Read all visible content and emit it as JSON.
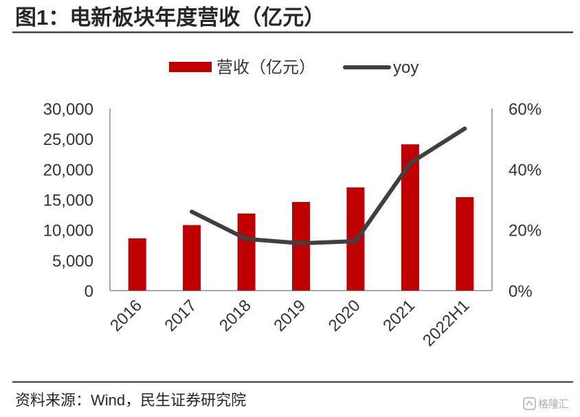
{
  "title": "图1：电新板块年度营收（亿元）",
  "source": "资料来源：Wind，民生证券研究院",
  "watermark": "格隆汇",
  "colors": {
    "bar": "#C00000",
    "line": "#404040",
    "axis": "#8c8c8c",
    "rule": "#404040",
    "text": "#262626"
  },
  "chart_data": {
    "type": "bar",
    "categories": [
      "2016",
      "2017",
      "2018",
      "2019",
      "2020",
      "2021",
      "2022H1"
    ],
    "series": [
      {
        "name": "营收（亿元）",
        "type": "bar",
        "axis": "left",
        "values": [
          8600,
          10800,
          12700,
          14600,
          17000,
          24100,
          15400
        ]
      },
      {
        "name": "yoy",
        "type": "line",
        "axis": "right",
        "values": [
          null,
          26,
          17,
          15.6,
          16.3,
          42,
          53.4
        ]
      }
    ],
    "y_left": {
      "min": 0,
      "max": 30000,
      "ticks": [
        0,
        5000,
        10000,
        15000,
        20000,
        25000,
        30000
      ],
      "tick_labels": [
        "0",
        "5,000",
        "10,000",
        "15,000",
        "20,000",
        "25,000",
        "30,000"
      ]
    },
    "y_right": {
      "min": 0,
      "max": 60,
      "unit": "%",
      "ticks": [
        0,
        20,
        40,
        60
      ],
      "tick_labels": [
        "0%",
        "20%",
        "40%",
        "60%"
      ]
    },
    "grid": false,
    "legend": "top-center"
  }
}
